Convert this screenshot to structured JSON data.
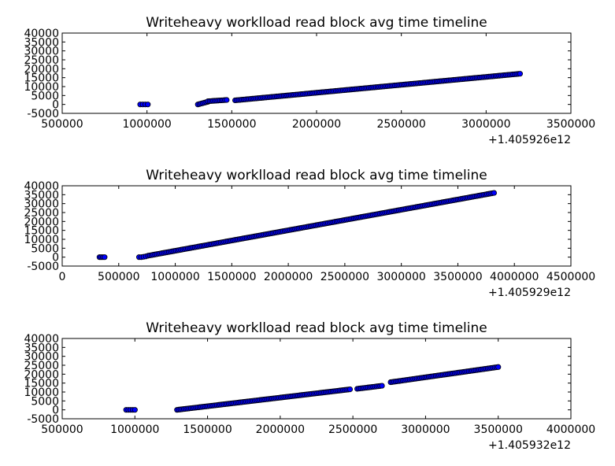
{
  "figure": {
    "background": "#ffffff",
    "marker_fill": "#0000ff",
    "marker_edge": "#000000"
  },
  "chart_data": [
    {
      "type": "scatter",
      "title": "Writeheavy worklload read block avg time timeline",
      "xlabel": "",
      "ylabel": "",
      "x_offset_label": "+1.405926e12",
      "xlim": [
        500000,
        3500000
      ],
      "ylim": [
        -5000,
        40000
      ],
      "x_ticks": [
        "500000",
        "1000000",
        "1500000",
        "2000000",
        "2500000",
        "3000000",
        "3500000"
      ],
      "y_ticks": [
        "-5000",
        "0",
        "5000",
        "10000",
        "15000",
        "20000",
        "25000",
        "30000",
        "35000",
        "40000"
      ],
      "grid": false,
      "series": [
        {
          "points": [
            [
              960000,
              0
            ],
            [
              975000,
              0
            ],
            [
              990000,
              0
            ],
            [
              1005000,
              0
            ]
          ]
        },
        {
          "segment": [
            1300000,
            0,
            1360000,
            1500
          ]
        },
        {
          "segment": [
            1360000,
            1800,
            1470000,
            2500
          ]
        },
        {
          "segment": [
            1520000,
            2300,
            3200000,
            17200
          ]
        }
      ]
    },
    {
      "type": "scatter",
      "title": "Writeheavy worklload read block avg time timeline",
      "xlabel": "",
      "ylabel": "",
      "x_offset_label": "+1.405929e12",
      "xlim": [
        0,
        4500000
      ],
      "ylim": [
        -5000,
        40000
      ],
      "x_ticks": [
        "0",
        "500000",
        "1000000",
        "1500000",
        "2000000",
        "2500000",
        "3000000",
        "3500000",
        "4000000",
        "4500000"
      ],
      "y_ticks": [
        "-5000",
        "0",
        "5000",
        "10000",
        "15000",
        "20000",
        "25000",
        "30000",
        "35000",
        "40000"
      ],
      "grid": false,
      "series": [
        {
          "points": [
            [
              330000,
              0
            ],
            [
              345000,
              0
            ],
            [
              360000,
              0
            ],
            [
              375000,
              0
            ]
          ]
        },
        {
          "points": [
            [
              680000,
              0
            ],
            [
              700000,
              0
            ],
            [
              720000,
              200
            ],
            [
              740000,
              400
            ]
          ]
        },
        {
          "segment": [
            760000,
            800,
            3820000,
            36000
          ]
        }
      ]
    },
    {
      "type": "scatter",
      "title": "Writeheavy worklload read block avg time timeline",
      "xlabel": "",
      "ylabel": "",
      "x_offset_label": "+1.405932e12",
      "xlim": [
        500000,
        4000000
      ],
      "ylim": [
        -5000,
        40000
      ],
      "x_ticks": [
        "500000",
        "1000000",
        "1500000",
        "2000000",
        "2500000",
        "3000000",
        "3500000",
        "4000000"
      ],
      "y_ticks": [
        "-5000",
        "0",
        "5000",
        "10000",
        "15000",
        "20000",
        "25000",
        "30000",
        "35000",
        "40000"
      ],
      "grid": false,
      "series": [
        {
          "points": [
            [
              940000,
              0
            ],
            [
              955000,
              0
            ],
            [
              970000,
              0
            ],
            [
              985000,
              0
            ],
            [
              1000000,
              0
            ]
          ]
        },
        {
          "segment": [
            1290000,
            0,
            2480000,
            11500
          ]
        },
        {
          "segment": [
            2530000,
            11800,
            2700000,
            13500
          ]
        },
        {
          "segment": [
            2760000,
            15500,
            3500000,
            24000
          ]
        }
      ]
    }
  ]
}
